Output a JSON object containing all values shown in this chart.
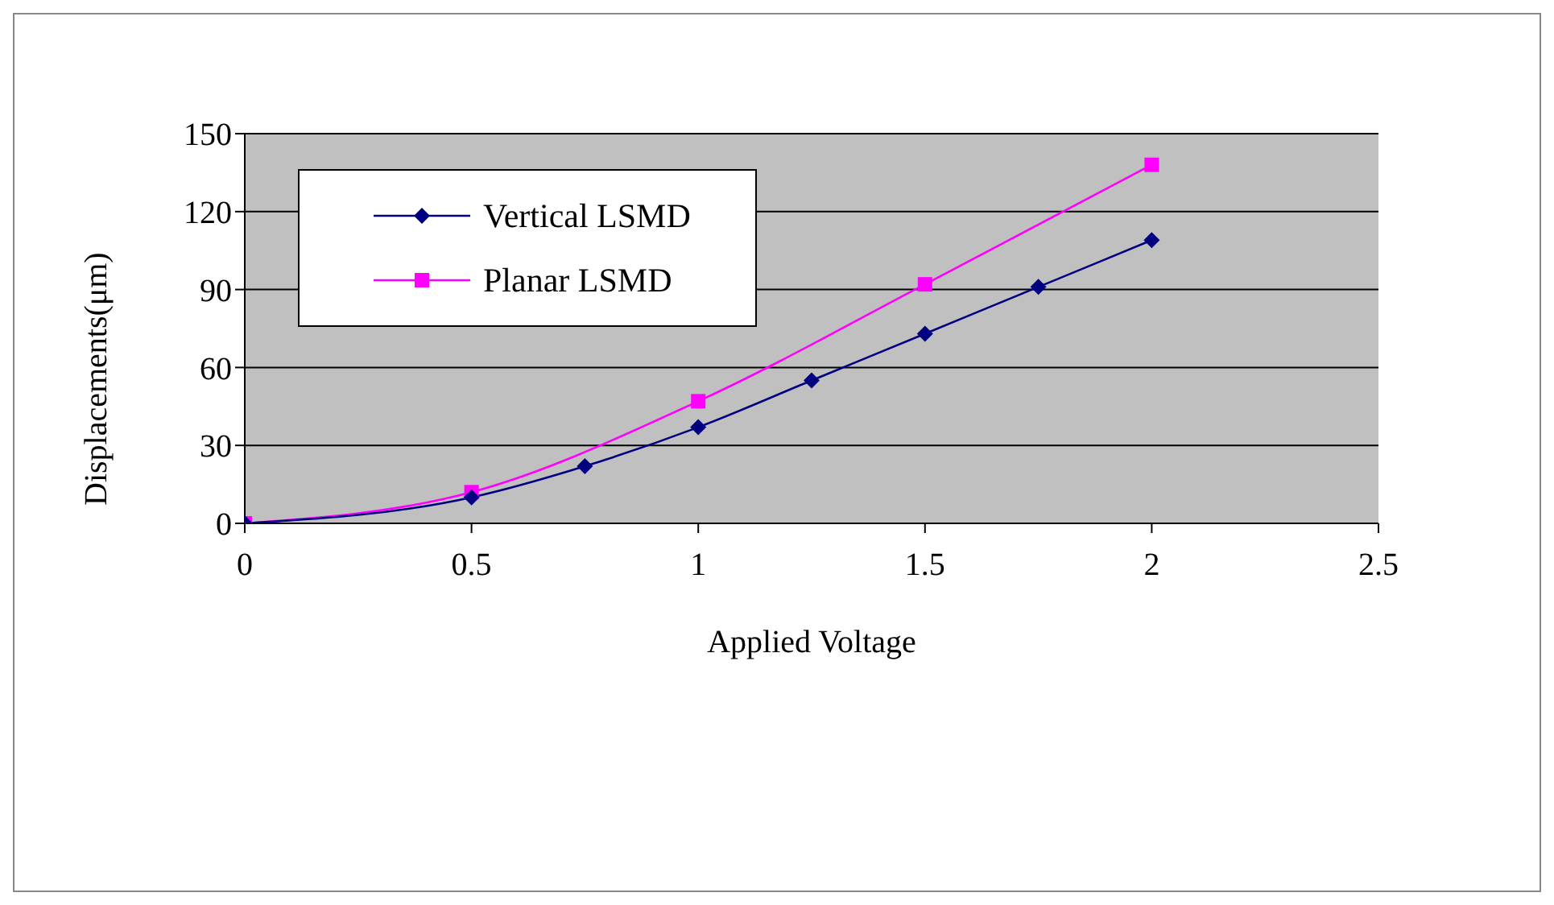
{
  "chart_data": {
    "type": "line",
    "xlabel": "Applied Voltage",
    "ylabel": "Displacements(μm)",
    "xlim": [
      0,
      2.5
    ],
    "xticks": [
      0,
      0.5,
      1,
      1.5,
      2,
      2.5
    ],
    "ylim": [
      0,
      150
    ],
    "yticks": [
      0,
      30,
      60,
      90,
      120,
      150
    ],
    "grid": "y",
    "legend": "top left",
    "series": [
      {
        "name": "Vertical LSMD",
        "color": "#000080",
        "marker": "diamond",
        "x": [
          0,
          0.5,
          0.75,
          1,
          1.25,
          1.5,
          1.75,
          2
        ],
        "values": [
          0,
          10,
          22,
          37,
          55,
          73,
          91,
          109
        ]
      },
      {
        "name": "Planar LSMD",
        "color": "#ff00ff",
        "marker": "square",
        "x": [
          0,
          0.5,
          1,
          1.5,
          2
        ],
        "values": [
          0,
          12,
          47,
          92,
          138
        ]
      }
    ]
  }
}
